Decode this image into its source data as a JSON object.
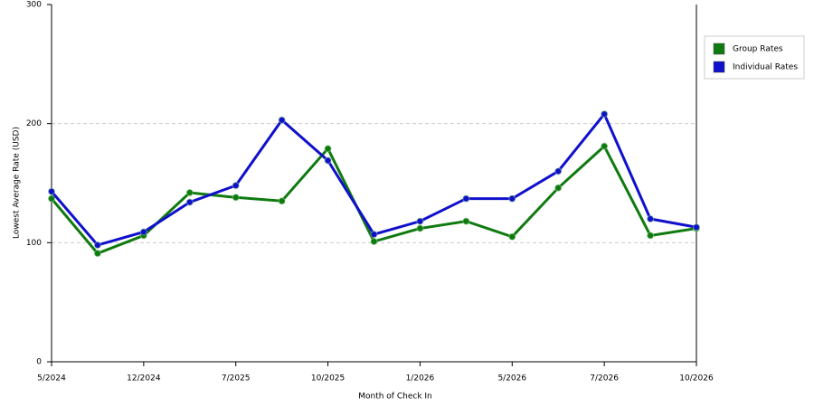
{
  "chart_data": {
    "type": "line",
    "x_label": "Month of Check In",
    "y_label": "Lowest Average Rate (USD)",
    "categories": [
      "5/2024",
      null,
      "12/2024",
      null,
      "7/2025",
      null,
      "10/2025",
      null,
      "1/2026",
      null,
      "5/2026",
      null,
      "7/2026",
      null,
      "10/2026"
    ],
    "series": [
      {
        "name": "Group Rates",
        "color": "#0f7a0f",
        "values": [
          137,
          91,
          106,
          142,
          138,
          135,
          179,
          101,
          112,
          118,
          105,
          146,
          181,
          106,
          112
        ]
      },
      {
        "name": "Individual Rates",
        "color": "#1010cc",
        "values": [
          143,
          98,
          109,
          134,
          148,
          203,
          169,
          107,
          118,
          137,
          137,
          160,
          208,
          120,
          113
        ]
      }
    ],
    "ylim": [
      0,
      300
    ],
    "yticks": [
      0,
      100,
      200,
      300
    ],
    "grid": true,
    "legend": "top-right"
  }
}
